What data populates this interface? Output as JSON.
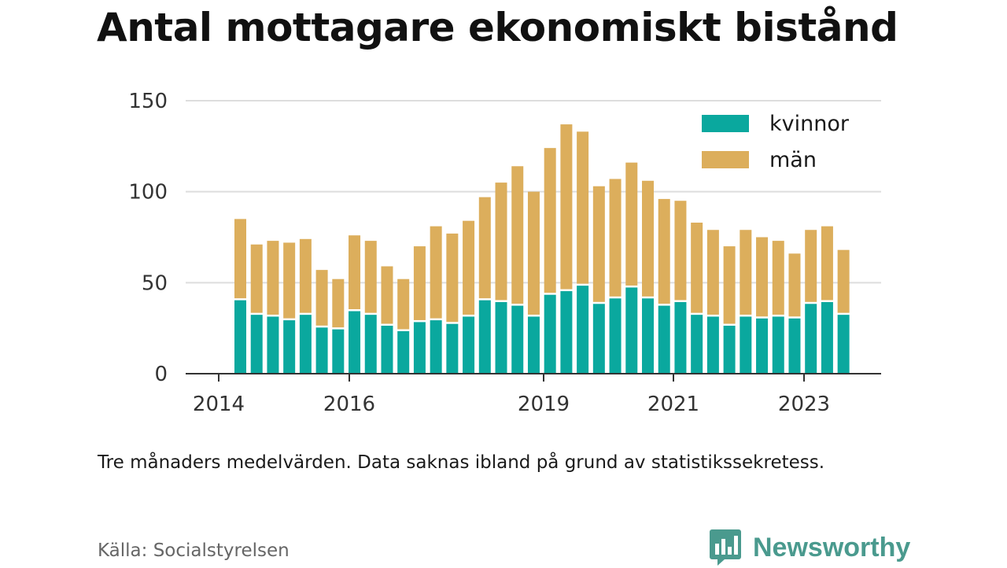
{
  "title": "Antal mottagare ekonomiskt bistånd",
  "note": "Tre månaders medelvärden. Data saknas ibland på grund av statistikssekretess.",
  "source": "Källa: Socialstyrelsen",
  "brand": {
    "name": "Newsworthy",
    "logo_icon": "bar-chart-speech-bubble-icon"
  },
  "colors": {
    "kvinnor": "#0aa89e",
    "man": "#dcae5c",
    "grid": "#dddddd",
    "axis": "#333333",
    "brand": "#4a9a8e"
  },
  "chart_data": {
    "type": "bar",
    "stacked": true,
    "x_ticks": [
      "2014",
      "2016",
      "2019",
      "2021",
      "2023"
    ],
    "ylim": [
      0,
      150
    ],
    "y_ticks": [
      "0",
      "50",
      "100",
      "150"
    ],
    "grid": "horizontal",
    "legend_position": "top-right",
    "series": [
      {
        "name": "kvinnor",
        "values": [
          41,
          33,
          32,
          30,
          33,
          26,
          25,
          35,
          33,
          27,
          24,
          29,
          30,
          28,
          32,
          41,
          40,
          38,
          32,
          44,
          46,
          49,
          39,
          42,
          48,
          42,
          38,
          40,
          33,
          32,
          27,
          32,
          31,
          32,
          31,
          39,
          40,
          33
        ]
      },
      {
        "name": "män",
        "values": [
          44,
          38,
          41,
          42,
          41,
          31,
          27,
          41,
          40,
          32,
          28,
          41,
          51,
          49,
          52,
          56,
          65,
          76,
          68,
          80,
          91,
          84,
          64,
          65,
          68,
          64,
          58,
          55,
          50,
          47,
          43,
          47,
          44,
          41,
          35,
          40,
          41,
          35
        ]
      }
    ]
  }
}
